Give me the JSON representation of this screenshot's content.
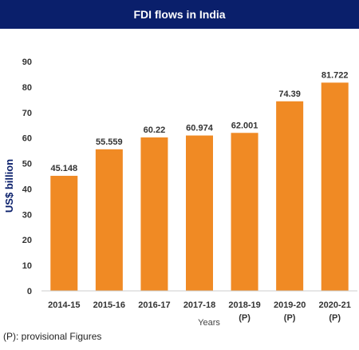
{
  "chart_data": {
    "type": "bar",
    "title": "FDI flows in India",
    "xlabel": "Years",
    "ylabel": "US$ billion",
    "ylim": [
      0,
      90
    ],
    "yticks": [
      0,
      10,
      20,
      30,
      40,
      50,
      60,
      70,
      80,
      90
    ],
    "grid": false,
    "categories": [
      "2014-15",
      "2015-16",
      "2016-17",
      "2017-18",
      "2018-19",
      "2019-20",
      "2020-21"
    ],
    "category_notes": [
      "",
      "",
      "",
      "",
      "(P)",
      "(P)",
      "(P)"
    ],
    "values": [
      45.148,
      55.559,
      60.22,
      60.974,
      62.001,
      74.39,
      81.722
    ],
    "data_labels": [
      "45.148",
      "55.559",
      "60.22",
      "60.974",
      "62.001",
      "74.39",
      "81.722"
    ],
    "colors": {
      "bar": "#f08a24",
      "title_bg": "#0a1f6b",
      "ylabel": "#0a1f6b"
    }
  },
  "footnote": "(P): provisional Figures"
}
